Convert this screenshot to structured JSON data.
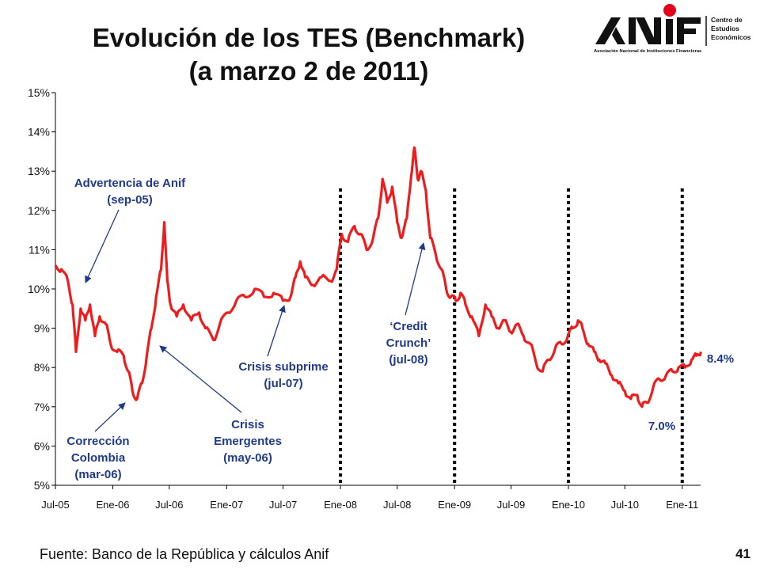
{
  "title_line1": "Evolución de los TES (Benchmark)",
  "title_line2": "(a marzo 2 de 2011)",
  "logo": {
    "wordmark": "ANIF",
    "subtitle": "Asociación Nacional de Instituciones Financieras",
    "side_text": [
      "Centro de",
      "Estudios",
      "Económicos"
    ],
    "accent": "#e3001b"
  },
  "source": "Fuente: Banco de la República y cálculos Anif",
  "page_number": "41",
  "colors": {
    "series": "#ee1c1c",
    "annotation": "#1f3a8a",
    "axis": "#000000"
  },
  "chart_data": {
    "type": "line",
    "title": "Evolución de los TES (Benchmark)",
    "x_ticks": [
      "Jul-05",
      "Ene-06",
      "Jul-06",
      "Ene-07",
      "Jul-07",
      "Ene-08",
      "Jul-08",
      "Ene-09",
      "Jul-09",
      "Ene-10",
      "Jul-10",
      "Ene-11"
    ],
    "y_ticks": [
      "5%",
      "6%",
      "7%",
      "8%",
      "9%",
      "10%",
      "11%",
      "12%",
      "13%",
      "14%",
      "15%"
    ],
    "ylim": [
      5,
      15
    ],
    "xlim": [
      "2005-07",
      "2011-03"
    ],
    "grid": false,
    "vertical_dotted_lines": [
      "2008-01",
      "2009-01",
      "2010-01",
      "2011-01"
    ],
    "series": [
      {
        "color": "#ee1c1c",
        "points": [
          [
            "2005-07-01",
            10.6
          ],
          [
            "2005-07-20",
            10.5
          ],
          [
            "2005-08-10",
            10.2
          ],
          [
            "2005-08-25",
            9.6
          ],
          [
            "2005-09-05",
            8.4
          ],
          [
            "2005-09-20",
            9.5
          ],
          [
            "2005-10-05",
            9.2
          ],
          [
            "2005-10-20",
            9.6
          ],
          [
            "2005-11-05",
            8.8
          ],
          [
            "2005-11-20",
            9.3
          ],
          [
            "2005-12-10",
            9.1
          ],
          [
            "2005-12-25",
            8.6
          ],
          [
            "2006-01-15",
            8.4
          ],
          [
            "2006-02-05",
            8.3
          ],
          [
            "2006-02-20",
            7.9
          ],
          [
            "2006-03-05",
            7.4
          ],
          [
            "2006-03-20",
            7.2
          ],
          [
            "2006-04-05",
            7.6
          ],
          [
            "2006-04-20",
            8.3
          ],
          [
            "2006-05-05",
            9.0
          ],
          [
            "2006-05-20",
            9.8
          ],
          [
            "2006-06-05",
            10.5
          ],
          [
            "2006-06-15",
            11.7
          ],
          [
            "2006-06-25",
            10.2
          ],
          [
            "2006-07-05",
            9.6
          ],
          [
            "2006-07-25",
            9.3
          ],
          [
            "2006-08-15",
            9.6
          ],
          [
            "2006-09-10",
            9.2
          ],
          [
            "2006-10-05",
            9.4
          ],
          [
            "2006-10-25",
            9.0
          ],
          [
            "2006-11-20",
            8.7
          ],
          [
            "2006-12-10",
            9.1
          ],
          [
            "2007-01-05",
            9.4
          ],
          [
            "2007-02-01",
            9.7
          ],
          [
            "2007-03-01",
            9.8
          ],
          [
            "2007-04-01",
            10.0
          ],
          [
            "2007-05-01",
            9.8
          ],
          [
            "2007-06-01",
            9.9
          ],
          [
            "2007-07-01",
            9.7
          ],
          [
            "2007-07-25",
            9.8
          ],
          [
            "2007-08-10",
            10.3
          ],
          [
            "2007-08-25",
            10.7
          ],
          [
            "2007-09-10",
            10.3
          ],
          [
            "2007-10-05",
            10.1
          ],
          [
            "2007-11-01",
            10.3
          ],
          [
            "2007-12-01",
            10.2
          ],
          [
            "2007-12-20",
            10.5
          ],
          [
            "2008-01-05",
            11.4
          ],
          [
            "2008-01-25",
            11.2
          ],
          [
            "2008-02-15",
            11.6
          ],
          [
            "2008-03-05",
            11.4
          ],
          [
            "2008-03-25",
            11.0
          ],
          [
            "2008-04-15",
            11.3
          ],
          [
            "2008-05-01",
            11.8
          ],
          [
            "2008-05-15",
            12.8
          ],
          [
            "2008-05-30",
            12.2
          ],
          [
            "2008-06-15",
            12.6
          ],
          [
            "2008-07-01",
            11.7
          ],
          [
            "2008-07-15",
            11.3
          ],
          [
            "2008-08-01",
            11.8
          ],
          [
            "2008-08-15",
            12.9
          ],
          [
            "2008-08-25",
            13.6
          ],
          [
            "2008-09-05",
            12.8
          ],
          [
            "2008-09-15",
            13.0
          ],
          [
            "2008-10-01",
            12.5
          ],
          [
            "2008-10-15",
            11.3
          ],
          [
            "2008-11-01",
            10.9
          ],
          [
            "2008-11-20",
            10.5
          ],
          [
            "2008-12-05",
            10.0
          ],
          [
            "2008-12-20",
            9.8
          ],
          [
            "2009-01-05",
            9.7
          ],
          [
            "2009-01-20",
            9.9
          ],
          [
            "2009-02-05",
            9.6
          ],
          [
            "2009-02-25",
            9.3
          ],
          [
            "2009-03-20",
            8.8
          ],
          [
            "2009-04-10",
            9.6
          ],
          [
            "2009-04-30",
            9.3
          ],
          [
            "2009-05-20",
            9.0
          ],
          [
            "2009-06-10",
            9.2
          ],
          [
            "2009-06-30",
            8.9
          ],
          [
            "2009-07-20",
            9.1
          ],
          [
            "2009-08-10",
            8.8
          ],
          [
            "2009-09-01",
            8.6
          ],
          [
            "2009-09-20",
            8.1
          ],
          [
            "2009-10-10",
            7.9
          ],
          [
            "2009-10-30",
            8.2
          ],
          [
            "2009-11-20",
            8.5
          ],
          [
            "2009-12-10",
            8.6
          ],
          [
            "2009-12-30",
            8.8
          ],
          [
            "2010-01-15",
            9.0
          ],
          [
            "2010-02-01",
            9.2
          ],
          [
            "2010-02-15",
            9.0
          ],
          [
            "2010-03-05",
            8.6
          ],
          [
            "2010-03-25",
            8.4
          ],
          [
            "2010-04-10",
            8.2
          ],
          [
            "2010-04-30",
            8.1
          ],
          [
            "2010-05-20",
            7.8
          ],
          [
            "2010-06-10",
            7.6
          ],
          [
            "2010-07-01",
            7.4
          ],
          [
            "2010-07-20",
            7.2
          ],
          [
            "2010-08-10",
            7.3
          ],
          [
            "2010-08-25",
            7.0
          ],
          [
            "2010-09-10",
            7.1
          ],
          [
            "2010-09-30",
            7.5
          ],
          [
            "2010-10-20",
            7.7
          ],
          [
            "2010-11-10",
            7.8
          ],
          [
            "2010-12-01",
            7.9
          ],
          [
            "2010-12-20",
            8.0
          ],
          [
            "2011-01-10",
            8.0
          ],
          [
            "2011-01-31",
            8.2
          ],
          [
            "2011-02-15",
            8.3
          ],
          [
            "2011-03-02",
            8.4
          ]
        ]
      }
    ],
    "annotations": [
      {
        "lines": [
          "Advertencia de Anif",
          "(sep-05)"
        ],
        "date": "2005-09"
      },
      {
        "lines": [
          "Corrección",
          "Colombia",
          "(mar-06)"
        ],
        "date": "2006-03"
      },
      {
        "lines": [
          "Crisis",
          "Emergentes",
          "(may-06)"
        ],
        "date": "2006-05"
      },
      {
        "lines": [
          "Crisis subprime",
          "(jul-07)"
        ],
        "date": "2007-07"
      },
      {
        "lines": [
          "‘Credit",
          "Crunch’",
          "(jul-08)"
        ],
        "date": "2008-07"
      },
      {
        "lines": [
          "7.0%"
        ]
      },
      {
        "lines": [
          "8.4%"
        ]
      }
    ]
  }
}
